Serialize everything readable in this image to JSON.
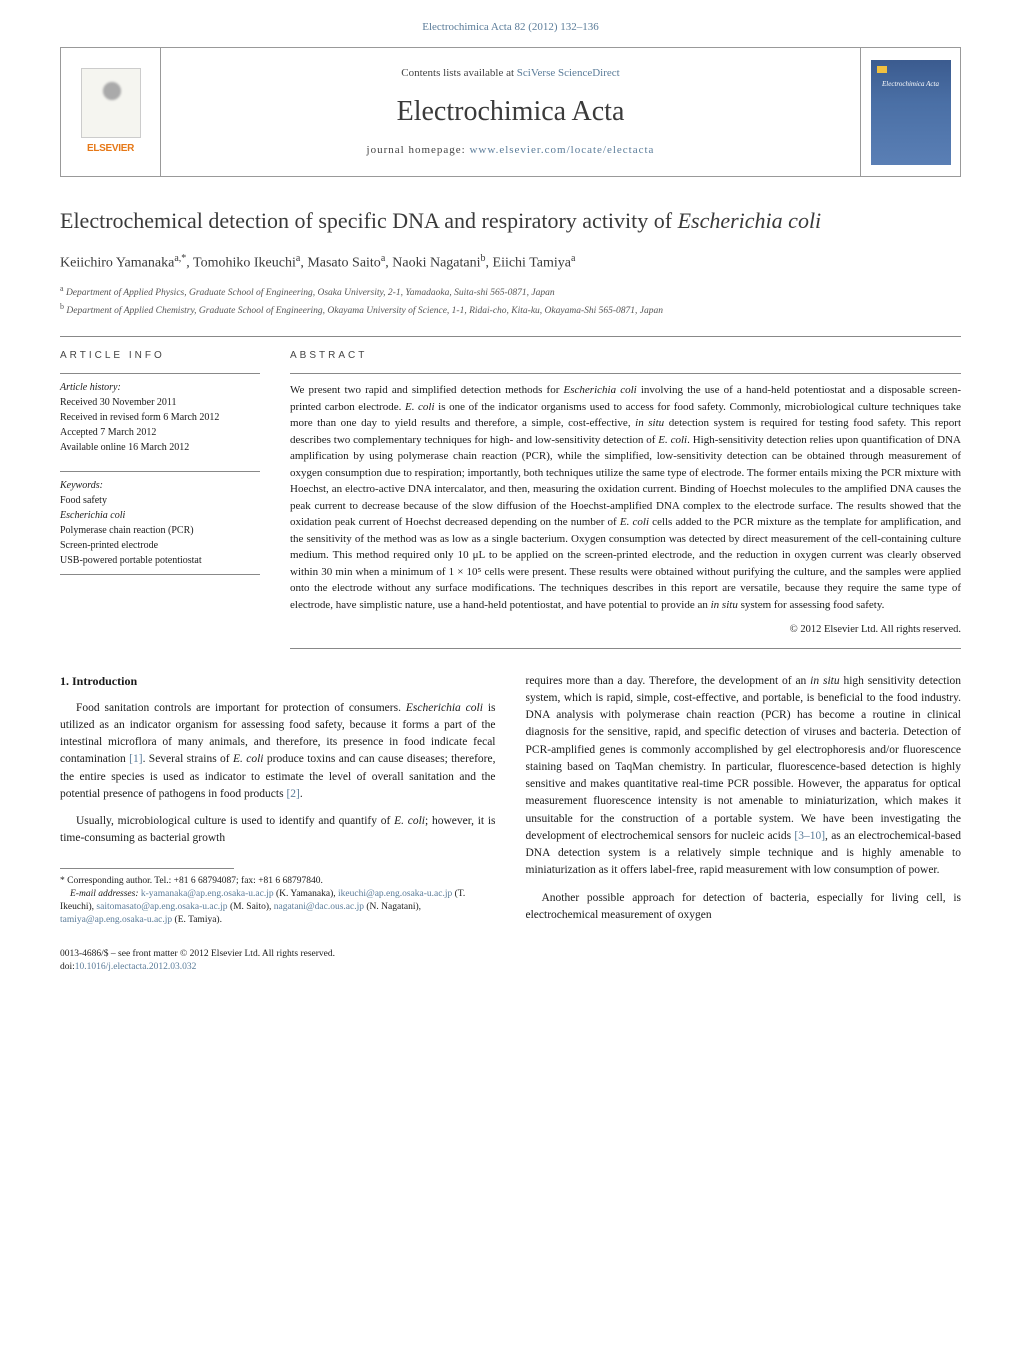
{
  "header": {
    "citation": "Electrochimica Acta 82 (2012) 132–136",
    "contents_prefix": "Contents lists available at ",
    "contents_link": "SciVerse ScienceDirect",
    "journal_name": "Electrochimica Acta",
    "homepage_prefix": "journal homepage: ",
    "homepage_url": "www.elsevier.com/locate/electacta",
    "publisher_logo": "ELSEVIER",
    "cover_label": "Electrochimica Acta"
  },
  "title": {
    "pre": "Electrochemical detection of specific DNA and respiratory activity of ",
    "species": "Escherichia coli"
  },
  "authors": "Keiichiro Yamanaka a,*, Tomohiko Ikeuchi a, Masato Saito a, Naoki Nagatani b, Eiichi Tamiya a",
  "affiliations": {
    "a": "Department of Applied Physics, Graduate School of Engineering, Osaka University, 2-1, Yamadaoka, Suita-shi 565-0871, Japan",
    "b": "Department of Applied Chemistry, Graduate School of Engineering, Okayama University of Science, 1-1, Ridai-cho, Kita-ku, Okayama-Shi 565-0871, Japan"
  },
  "labels": {
    "article_info": "ARTICLE INFO",
    "abstract": "ABSTRACT",
    "history": "Article history:",
    "keywords": "Keywords:"
  },
  "history": {
    "received": "Received 30 November 2011",
    "revised": "Received in revised form 6 March 2012",
    "accepted": "Accepted 7 March 2012",
    "online": "Available online 16 March 2012"
  },
  "keywords": [
    "Food safety",
    "Escherichia coli",
    "Polymerase chain reaction (PCR)",
    "Screen-printed electrode",
    "USB-powered portable potentiostat"
  ],
  "abstract": {
    "p1a": "We present two rapid and simplified detection methods for ",
    "sp1": "Escherichia coli",
    "p1b": " involving the use of a hand-held potentiostat and a disposable screen-printed carbon electrode. ",
    "sp2": "E. coli",
    "p1c": " is one of the indicator organisms used to access for food safety. Commonly, microbiological culture techniques take more than one day to yield results and therefore, a simple, cost-effective, ",
    "sp3": "in situ",
    "p1d": " detection system is required for testing food safety. This report describes two complementary techniques for high- and low-sensitivity detection of ",
    "sp4": "E. coli",
    "p1e": ". High-sensitivity detection relies upon quantification of DNA amplification by using polymerase chain reaction (PCR), while the simplified, low-sensitivity detection can be obtained through measurement of oxygen consumption due to respiration; importantly, both techniques utilize the same type of electrode. The former entails mixing the PCR mixture with Hoechst, an electro-active DNA intercalator, and then, measuring the oxidation current. Binding of Hoechst molecules to the amplified DNA causes the peak current to decrease because of the slow diffusion of the Hoechst-amplified DNA complex to the electrode surface. The results showed that the oxidation peak current of Hoechst decreased depending on the number of ",
    "sp5": "E. coli",
    "p1f": " cells added to the PCR mixture as the template for amplification, and the sensitivity of the method was as low as a single bacterium. Oxygen consumption was detected by direct measurement of the cell-containing culture medium. This method required only 10 μL to be applied on the screen-printed electrode, and the reduction in oxygen current was clearly observed within 30 min when a minimum of 1 × 10⁵ cells were present. These results were obtained without purifying the culture, and the samples were applied onto the electrode without any surface modifications. The techniques describes in this report are versatile, because they require the same type of electrode, have simplistic nature, use a hand-held potentiostat, and have potential to provide an ",
    "sp6": "in situ",
    "p1g": " system for assessing food safety."
  },
  "copyright": "© 2012 Elsevier Ltd. All rights reserved.",
  "section1": {
    "heading": "1. Introduction",
    "para1a": "Food sanitation controls are important for protection of consumers. ",
    "para1_sp1": "Escherichia coli",
    "para1b": " is utilized as an indicator organism for assessing food safety, because it forms a part of the intestinal microflora of many animals, and therefore, its presence in food indicate fecal contamination ",
    "para1_cite1": "[1]",
    "para1c": ". Several strains of ",
    "para1_sp2": "E. coli",
    "para1d": " produce toxins and can cause diseases; therefore, the entire species is used as indicator to estimate the level of overall sanitation and the potential presence of pathogens in food products ",
    "para1_cite2": "[2]",
    "para1e": ".",
    "para2a": "Usually, microbiological culture is used to identify and quantify of ",
    "para2sp": "E. coli",
    "para2b": "; however, it is time-consuming as bacterial growth",
    "para3a": "requires more than a day. Therefore, the development of an ",
    "para3_sp1": "in situ",
    "para3b": " high sensitivity detection system, which is rapid, simple, cost-effective, and portable, is beneficial to the food industry. DNA analysis with polymerase chain reaction (PCR) has become a routine in clinical diagnosis for the sensitive, rapid, and specific detection of viruses and bacteria. Detection of PCR-amplified genes is commonly accomplished by gel electrophoresis and/or fluorescence staining based on TaqMan chemistry. In particular, fluorescence-based detection is highly sensitive and makes quantitative real-time PCR possible. However, the apparatus for optical measurement fluorescence intensity is not amenable to miniaturization, which makes it unsuitable for the construction of a portable system. We have been investigating the development of electrochemical sensors for nucleic acids ",
    "para3_cite": "[3–10]",
    "para3c": ", as an electrochemical-based DNA detection system is a relatively simple technique and is highly amenable to miniaturization as it offers label-free, rapid measurement with low consumption of power.",
    "para4": "Another possible approach for detection of bacteria, especially for living cell, is electrochemical measurement of oxygen"
  },
  "footnote": {
    "corr": "* Corresponding author. Tel.: +81 6 68794087; fax: +81 6 68797840.",
    "emails_label": "E-mail addresses:",
    "emails": "k-yamanaka@ap.eng.osaka-u.ac.jp (K. Yamanaka), ikeuchi@ap.eng.osaka-u.ac.jp (T. Ikeuchi), saitomasato@ap.eng.osaka-u.ac.jp (M. Saito), nagatani@dac.ous.ac.jp (N. Nagatani), tamiya@ap.eng.osaka-u.ac.jp (E. Tamiya)."
  },
  "footer": {
    "line1": "0013-4686/$ – see front matter © 2012 Elsevier Ltd. All rights reserved.",
    "doi_label": "doi:",
    "doi": "10.1016/j.electacta.2012.03.032"
  },
  "colors": {
    "link": "#5b7c99",
    "text": "#1a1a1a",
    "elsevier_orange": "#e67817",
    "cover_blue": "#4a6fa5",
    "rule": "#888888"
  }
}
